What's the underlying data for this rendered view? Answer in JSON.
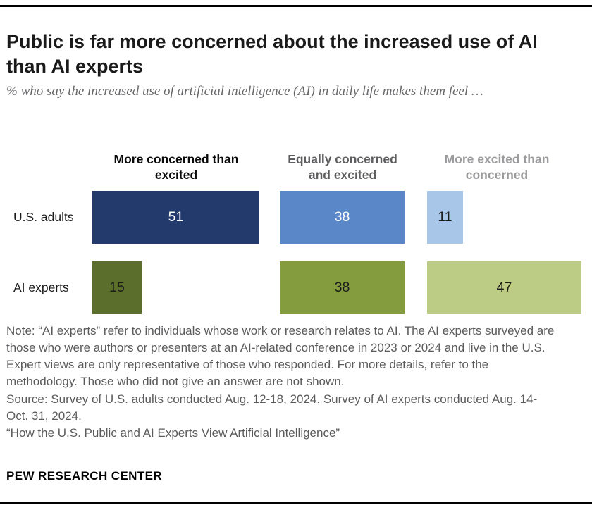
{
  "chart_data": {
    "type": "bar",
    "orientation": "horizontal",
    "unit": "percent",
    "title": "Public is far more concerned about the increased use of AI than AI experts",
    "subtitle": "% who say the increased use of artificial intelligence (AI) in daily life makes them feel …",
    "categories": [
      "More concerned than excited",
      "Equally concerned and excited",
      "More excited than concerned"
    ],
    "category_header_colors": [
      "#0a0a0a",
      "#5e5e60",
      "#9b9b9d"
    ],
    "rows": [
      {
        "label": "U.S. adults",
        "values": [
          51,
          38,
          11
        ],
        "bar_colors": [
          "#233a6c",
          "#5a87c8",
          "#a7c6e8"
        ],
        "value_text_colors": [
          "#ffffff",
          "#ffffff",
          "#1a1a1a"
        ]
      },
      {
        "label": "AI experts",
        "values": [
          15,
          38,
          47
        ],
        "bar_colors": [
          "#5c6e2c",
          "#849c3e",
          "#bccc85"
        ],
        "value_text_colors": [
          "#1a1a1a",
          "#1a1a1a",
          "#1a1a1a"
        ]
      }
    ],
    "xlim": [
      0,
      55
    ],
    "value_labels_shown": true,
    "grid": false,
    "legend_position": "column-headers"
  },
  "notes": {
    "note": "Note: “AI experts” refer to individuals whose work or research relates to AI. The AI experts surveyed are those who were authors or presenters at an AI-related conference in 2023 or 2024 and live in the U.S. Expert views are only representative of those who responded. For more details, refer to the methodology. Those who did not give an answer are not shown.",
    "source": "Source: Survey of U.S. adults conducted Aug. 12-18, 2024. Survey of AI experts conducted Aug. 14-Oct. 31, 2024.",
    "report": "“How the U.S. Public and AI Experts View Artificial Intelligence”"
  },
  "footer": {
    "brand": "PEW RESEARCH CENTER"
  }
}
